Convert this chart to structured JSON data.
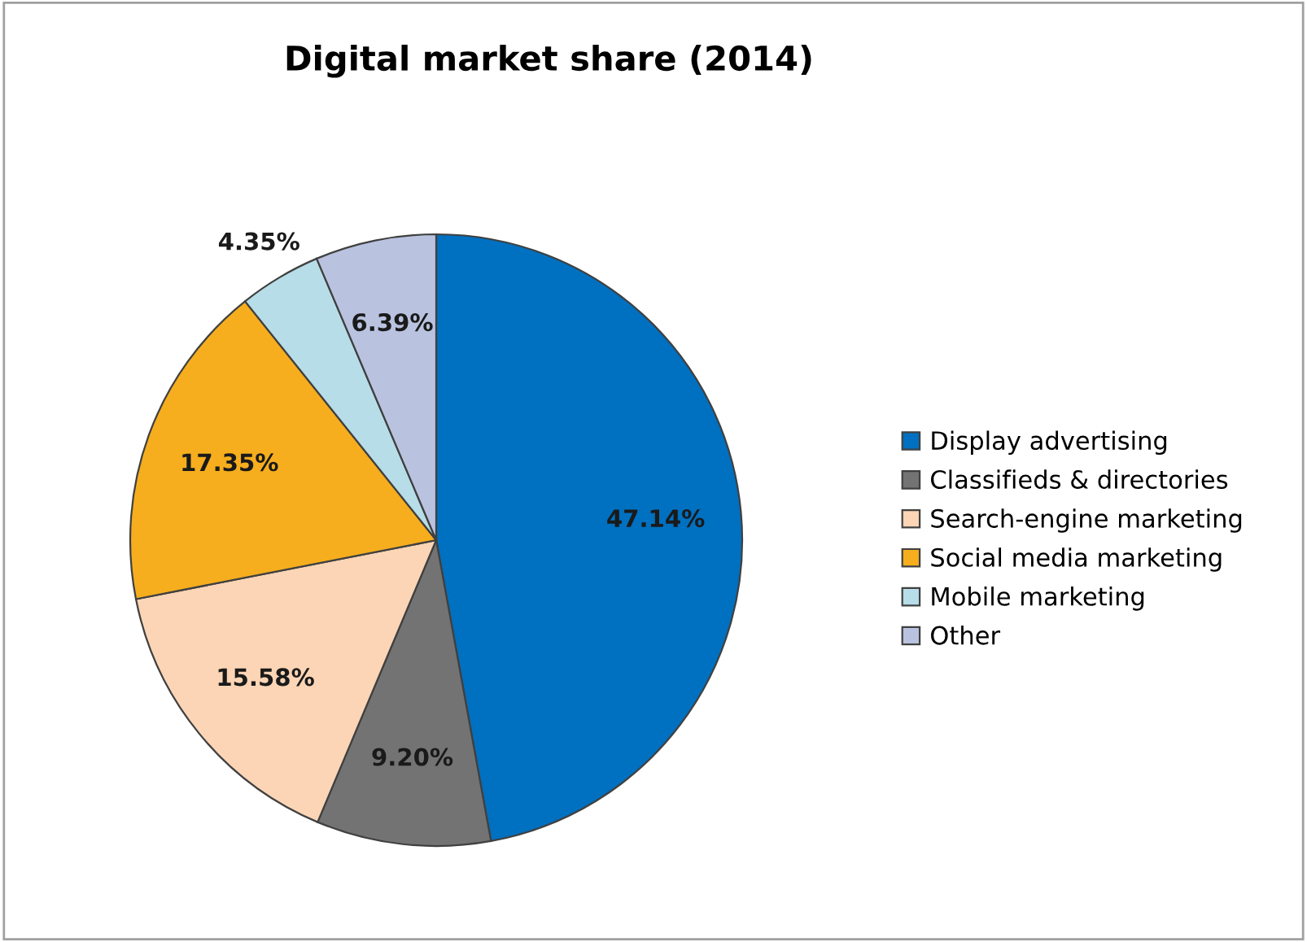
{
  "chart_data": {
    "type": "pie",
    "title": "Digital market share (2014)",
    "categories": [
      "Display advertising",
      "Classifieds & directories",
      "Search-engine marketing",
      "Social media marketing",
      "Mobile marketing",
      "Other"
    ],
    "values": [
      47.14,
      9.2,
      15.58,
      17.35,
      4.35,
      6.39
    ],
    "value_labels": [
      "47.14%",
      "9.20%",
      "15.58%",
      "17.35%",
      "4.35%",
      "6.39%"
    ],
    "colors": [
      "#0070c0",
      "#737373",
      "#fbd5b5",
      "#f6ae1e",
      "#b7dde8",
      "#b9c3e0"
    ],
    "legend": "right"
  }
}
